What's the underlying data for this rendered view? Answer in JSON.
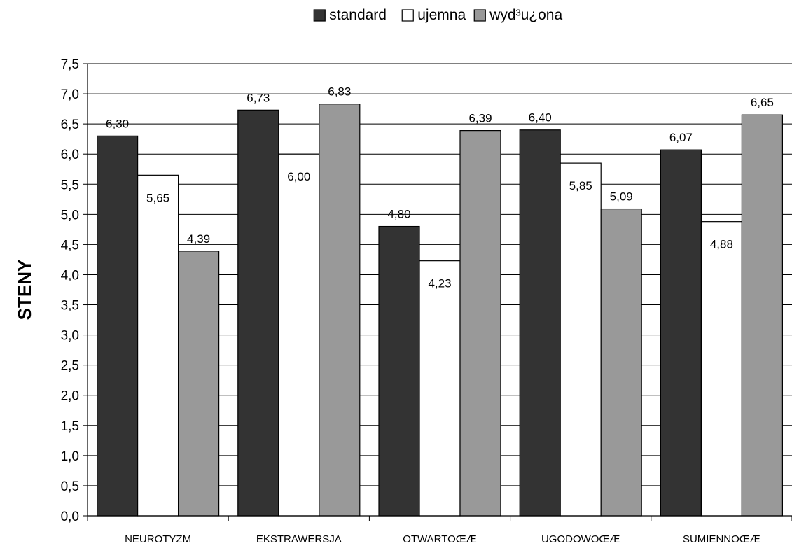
{
  "chart_data": {
    "type": "bar",
    "title": "",
    "xlabel": "",
    "ylabel": "STENY",
    "ylim": [
      0,
      7.5
    ],
    "ytick_step": 0.5,
    "yticks": [
      "0,0",
      "0,5",
      "1,0",
      "1,5",
      "2,0",
      "2,5",
      "3,0",
      "3,5",
      "4,0",
      "4,5",
      "5,0",
      "5,5",
      "6,0",
      "6,5",
      "7,0",
      "7,5"
    ],
    "grid": true,
    "legend_position": "top-center",
    "categories": [
      "NEUROTYZM",
      "EKSTRAWERSJA",
      "OTWARTOŒÆ",
      "UGODOWOŒÆ",
      "SUMIENNOŒÆ"
    ],
    "series": [
      {
        "name": "standard",
        "color": "#333333",
        "values": [
          6.3,
          6.73,
          4.8,
          6.4,
          6.07
        ],
        "labels": [
          "6,30",
          "6,73",
          "4,80",
          "6,40",
          "6,07"
        ]
      },
      {
        "name": "ujemna",
        "color": "#ffffff",
        "values": [
          5.65,
          6.0,
          4.23,
          5.85,
          4.88
        ],
        "labels": [
          "5,65",
          "6,00",
          "4,23",
          "5,85",
          "4,88"
        ]
      },
      {
        "name": "wyd³u¿ona",
        "color": "#999999",
        "values": [
          4.39,
          6.83,
          6.39,
          5.09,
          6.65
        ],
        "labels": [
          "4,39",
          "6,83",
          "6,39",
          "5,09",
          "6,65"
        ]
      }
    ]
  }
}
